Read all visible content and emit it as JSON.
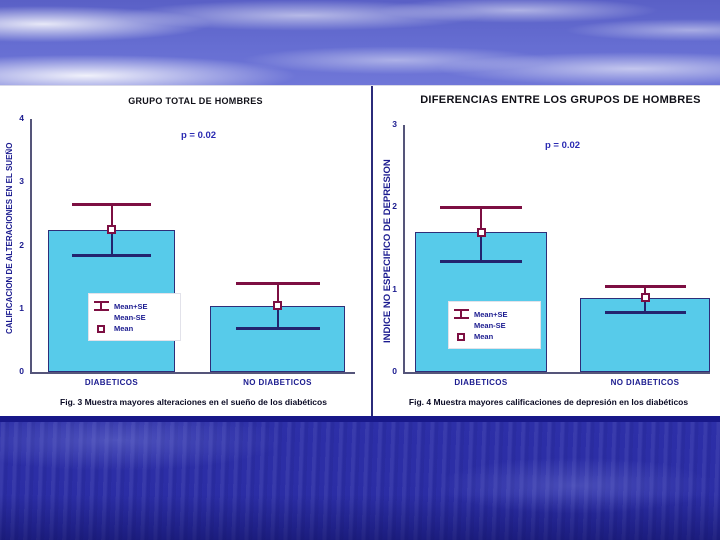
{
  "slide": {
    "panel_bg": "#FFFFFF",
    "sky_color": "#666ED2",
    "water_color": "#2D2FA9",
    "divider_color": "#2B2B7A",
    "bottom_bar_color": "#181889",
    "axis_text_color": "#1B1B8F"
  },
  "chart_data": [
    {
      "type": "bar",
      "title": "GRUPO TOTAL DE HOMBRES",
      "p_value_label": "p = 0.02",
      "ylabel": "CALIFICACION DE ALTERACIONES EN EL SUEÑO",
      "xlabel": "",
      "ylim": [
        0,
        4
      ],
      "yticks": [
        0,
        1,
        2,
        3,
        4
      ],
      "grid": false,
      "categories": [
        "DIABETICOS",
        "NO DIABETICOS"
      ],
      "series": [
        {
          "name": "Mean",
          "values": [
            2.25,
            1.05
          ]
        },
        {
          "name": "Mean+SE",
          "values": [
            2.65,
            1.4
          ]
        },
        {
          "name": "Mean-SE",
          "values": [
            1.85,
            0.7
          ]
        }
      ],
      "legend": [
        "Mean+SE",
        "Mean-SE",
        "Mean"
      ],
      "legend_position": "inside-first-bar",
      "caption": "Fig. 3 Muestra mayores alteraciones en el sueño de los diabéticos",
      "bar_color": "#57CBEA",
      "error_color": "#7D0F42",
      "error_cap_lower_color": "#23246E"
    },
    {
      "type": "bar",
      "title": "DIFERENCIAS ENTRE LOS GRUPOS DE HOMBRES",
      "p_value_label": "p = 0.02",
      "ylabel": "INDICE NO ESPECIFICO DE DEPRESION",
      "xlabel": "",
      "ylim": [
        0,
        3
      ],
      "yticks": [
        0,
        1,
        2,
        3
      ],
      "grid": false,
      "categories": [
        "DIABETICOS",
        "NO DIABETICOS"
      ],
      "series": [
        {
          "name": "Mean",
          "values": [
            1.7,
            0.9
          ]
        },
        {
          "name": "Mean+SE",
          "values": [
            2.0,
            1.05
          ]
        },
        {
          "name": "Mean-SE",
          "values": [
            1.35,
            0.73
          ]
        }
      ],
      "legend": [
        "Mean+SE",
        "Mean-SE",
        "Mean"
      ],
      "legend_position": "inside-first-bar",
      "caption": "Fig. 4 Muestra mayores calificaciones de depresión en los diabéticos",
      "bar_color": "#57CBEA",
      "error_color": "#7D0F42",
      "error_cap_lower_color": "#23246E"
    }
  ]
}
